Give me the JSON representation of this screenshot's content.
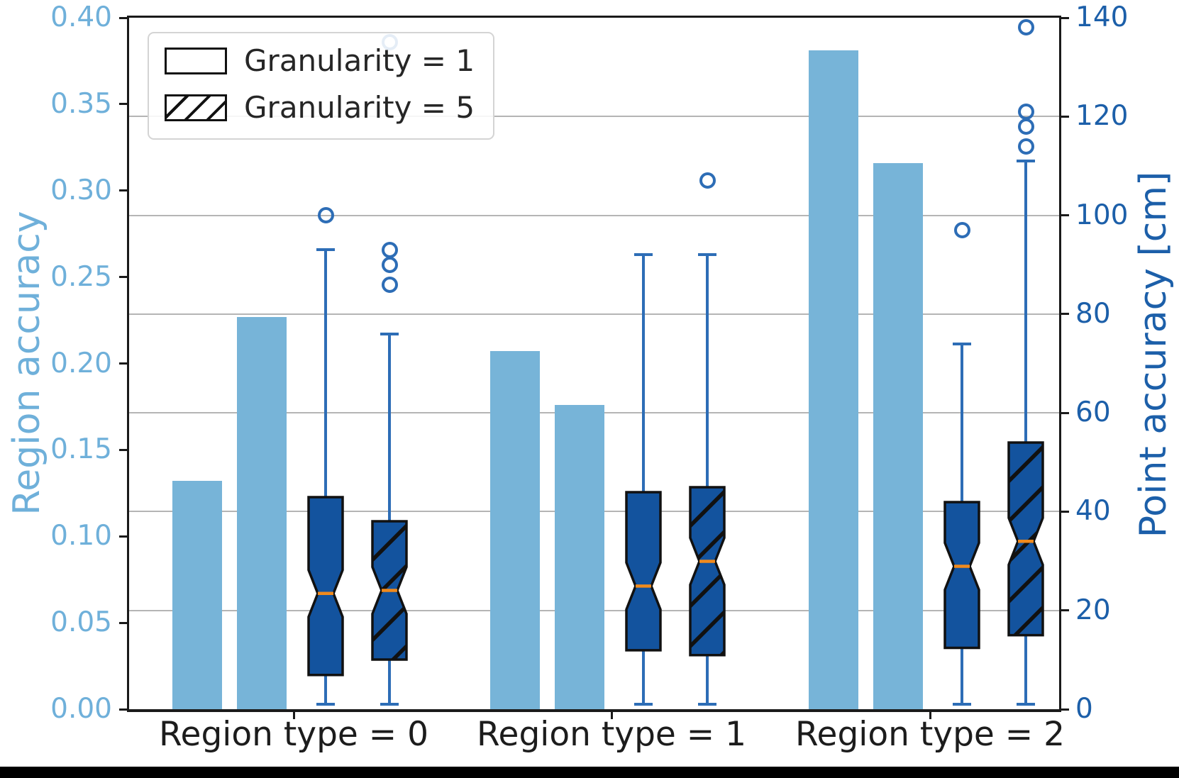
{
  "chart_data": {
    "type": "bar+boxplot",
    "title": "",
    "categories": [
      "Region type = 0",
      "Region type = 1",
      "Region type = 2"
    ],
    "left_axis": {
      "label": "Region accuracy",
      "min": 0.0,
      "max": 0.4,
      "tick_step": 0.05,
      "ticks": [
        "0.00",
        "0.05",
        "0.10",
        "0.15",
        "0.20",
        "0.25",
        "0.30",
        "0.35",
        "0.40"
      ],
      "color": "#6fb0da"
    },
    "right_axis": {
      "label": "Point accuracy [cm]",
      "min": 0,
      "max": 140,
      "tick_step": 20,
      "ticks": [
        "0",
        "20",
        "40",
        "60",
        "80",
        "100",
        "120",
        "140"
      ],
      "gridlines": [
        20,
        40,
        60,
        80,
        100,
        120
      ],
      "color": "#1c5fa9"
    },
    "legend": {
      "items": [
        {
          "label": "Granularity = 1",
          "hatch": false
        },
        {
          "label": "Granularity = 5",
          "hatch": true
        }
      ]
    },
    "bars": {
      "axis": "left",
      "units": "region accuracy",
      "series": [
        {
          "name": "Granularity = 1",
          "hatch": false,
          "values": [
            0.132,
            0.207,
            0.381
          ]
        },
        {
          "name": "Granularity = 5",
          "hatch": true,
          "values": [
            0.227,
            0.176,
            0.316
          ]
        }
      ]
    },
    "boxplots": {
      "axis": "right",
      "units": "cm",
      "notched": true,
      "series": [
        {
          "name": "Granularity = 1",
          "hatch": false,
          "boxes": [
            {
              "whisker_low": 1,
              "q1": 7,
              "median": 23.5,
              "q3": 43,
              "whisker_high": 93,
              "outliers": [
                100
              ]
            },
            {
              "whisker_low": 1,
              "q1": 12,
              "median": 25,
              "q3": 44,
              "whisker_high": 92,
              "outliers": []
            },
            {
              "whisker_low": 1,
              "q1": 12.5,
              "median": 29,
              "q3": 42,
              "whisker_high": 74,
              "outliers": [
                97
              ]
            }
          ]
        },
        {
          "name": "Granularity = 5",
          "hatch": true,
          "boxes": [
            {
              "whisker_low": 1,
              "q1": 10,
              "median": 24,
              "q3": 38,
              "whisker_high": 76,
              "outliers": [
                86,
                90,
                93,
                135
              ]
            },
            {
              "whisker_low": 1,
              "q1": 11,
              "median": 30,
              "q3": 45,
              "whisker_high": 92,
              "outliers": [
                107
              ]
            },
            {
              "whisker_low": 1,
              "q1": 15,
              "median": 34,
              "q3": 54,
              "whisker_high": 111,
              "outliers": [
                114,
                118,
                121,
                138
              ]
            }
          ]
        }
      ]
    },
    "colors": {
      "bar_fill": "#77b4d8",
      "box_fill": "#13539e",
      "whisker": "#2d6db6",
      "median": "#f08a1d",
      "hatch": "#111111",
      "grid": "#b5b5b5",
      "spine": "#1a1a1a",
      "x_text": "#1c1c1c"
    }
  }
}
